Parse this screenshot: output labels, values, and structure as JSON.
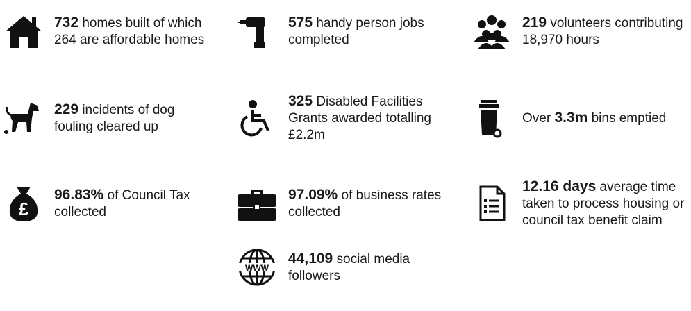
{
  "items": [
    {
      "strong": "732",
      "after": " homes built of which 264 are affordable homes"
    },
    {
      "strong": "575",
      "after": " handy person jobs completed"
    },
    {
      "strong": "219",
      "after": " volunteers contributing 18,970 hours"
    },
    {
      "strong": "229",
      "after": " incidents of dog fouling cleared up"
    },
    {
      "strong": "325",
      "after": " Disabled Facilities Grants awarded totalling £2.2m"
    },
    {
      "before": "Over ",
      "strong": "3.3m",
      "after": " bins emptied"
    },
    {
      "strong": "96.83%",
      "after": " of Council Tax collected"
    },
    {
      "strong": "97.09%",
      "after": " of business rates collected"
    },
    {
      "strong": "12.16 days",
      "after": " average time taken to process housing or council tax benefit claim"
    },
    {
      "strong": "44,109",
      "after": " social media followers"
    }
  ]
}
